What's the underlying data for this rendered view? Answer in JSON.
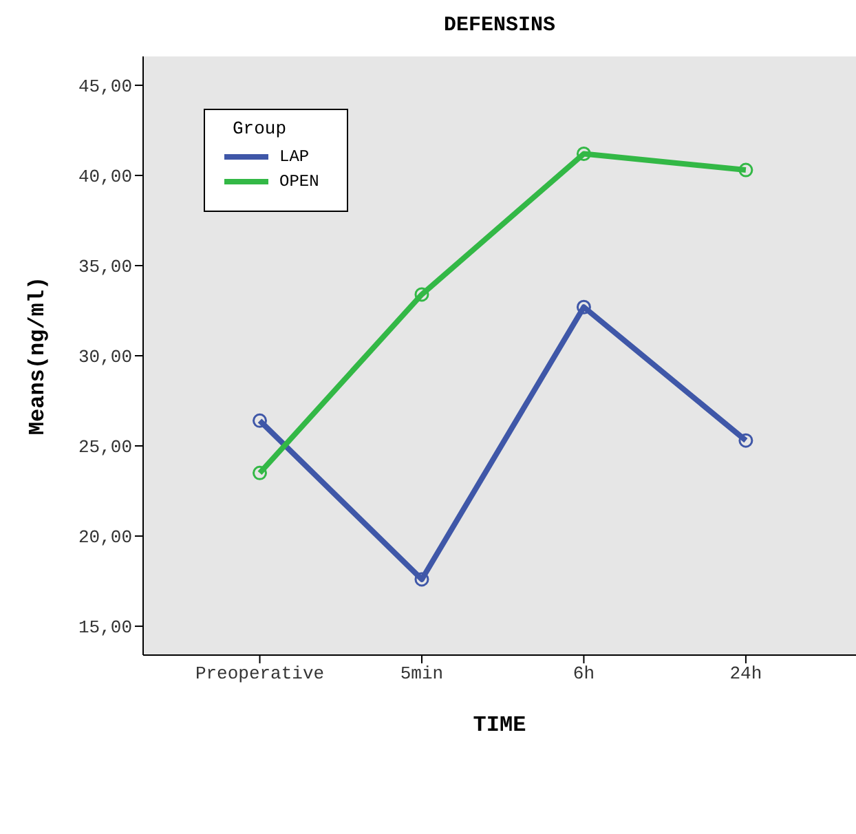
{
  "chart_data": {
    "type": "line",
    "title": "DEFENSINS",
    "xlabel": "TIME",
    "ylabel": "Means(ng/ml)",
    "legend_title": "Group",
    "categories": [
      "Preoperative",
      "5min",
      "6h",
      "24h"
    ],
    "series": [
      {
        "name": "LAP",
        "color": "#3f57a8",
        "values": [
          26.4,
          17.6,
          32.7,
          25.3
        ]
      },
      {
        "name": "OPEN",
        "color": "#33b846",
        "values": [
          23.5,
          33.4,
          41.2,
          40.3
        ]
      }
    ],
    "ylim": [
      13.4,
      46.6
    ],
    "yticks": [
      {
        "value": 15,
        "label": "15,00"
      },
      {
        "value": 20,
        "label": "20,00"
      },
      {
        "value": 25,
        "label": "25,00"
      },
      {
        "value": 30,
        "label": "30,00"
      },
      {
        "value": 35,
        "label": "35,00"
      },
      {
        "value": 40,
        "label": "40,00"
      },
      {
        "value": 45,
        "label": "45,00"
      }
    ],
    "grid": false,
    "legend": "top left",
    "marker": "circle",
    "line_style": "solid"
  }
}
